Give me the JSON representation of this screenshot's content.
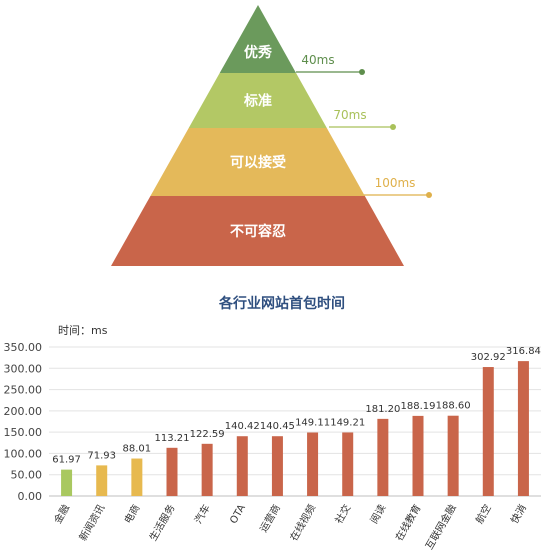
{
  "pyramid": {
    "levels": [
      {
        "label": "优秀",
        "threshold": "40ms",
        "color": "#6b9a5c",
        "marker_color": "#5e8e4c"
      },
      {
        "label": "标准",
        "threshold": "70ms",
        "color": "#b3c865",
        "marker_color": "#a9c15a"
      },
      {
        "label": "可以接受",
        "threshold": "100ms",
        "color": "#e4b95a",
        "marker_color": "#dfb04a"
      },
      {
        "label": "不可容忍",
        "threshold": "",
        "color": "#c9654a",
        "marker_color": "#c9654a"
      }
    ]
  },
  "chart_data": {
    "type": "bar",
    "title": "各行业网站首包时间",
    "ylabel": "时间：ms",
    "xlabel": "",
    "ylim": [
      0,
      350
    ],
    "yticks": [
      "0.00",
      "50.00",
      "100.00",
      "150.00",
      "200.00",
      "250.00",
      "300.00",
      "350.00"
    ],
    "grid": true,
    "categories": [
      "金融",
      "新闻资讯",
      "电商",
      "生活服务",
      "汽车",
      "OTA",
      "运营商",
      "在线视频",
      "社交",
      "阅读",
      "在线教育",
      "互联网金融",
      "航空",
      "快消"
    ],
    "values": [
      61.97,
      71.93,
      88.01,
      113.21,
      122.59,
      140.42,
      140.45,
      149.11,
      149.21,
      181.2,
      188.19,
      188.6,
      302.92,
      316.84
    ],
    "value_labels": [
      "61.97",
      "71.93",
      "88.01",
      "113.21",
      "122.59",
      "140.42",
      "140.45",
      "149.11",
      "149.21",
      "181.20",
      "188.19",
      "188.60",
      "302.92",
      "316.84"
    ],
    "bar_colors": [
      "#a9c860",
      "#e7b94f",
      "#e7b94f",
      "#c9654a",
      "#c9654a",
      "#c9654a",
      "#c9654a",
      "#c9654a",
      "#c9654a",
      "#c9654a",
      "#c9654a",
      "#c9654a",
      "#c9654a",
      "#c9654a"
    ],
    "title_color": "#2f4f7f"
  }
}
